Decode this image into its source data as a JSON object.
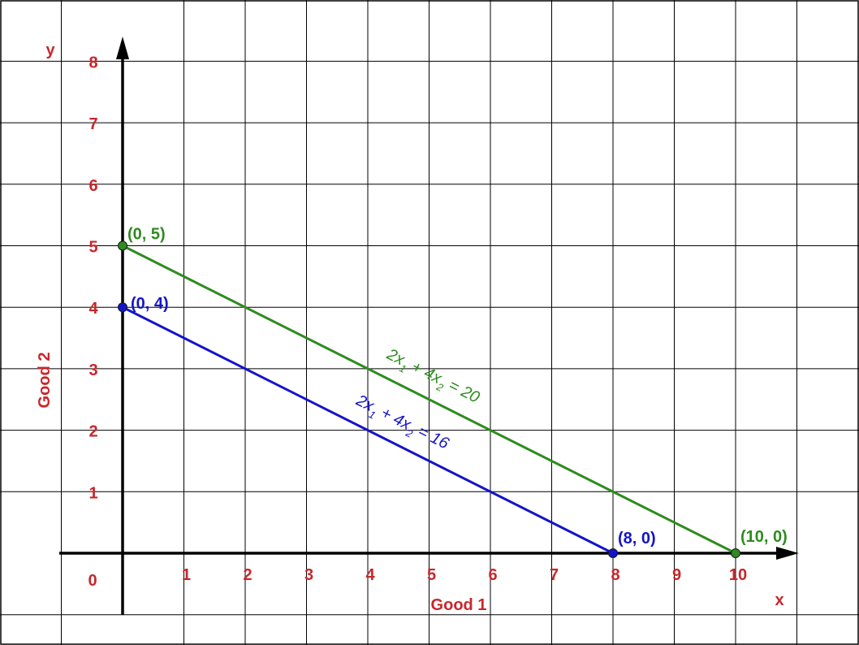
{
  "chart_data": {
    "type": "line",
    "xlabel": "Good 1",
    "ylabel": "Good 2",
    "x_axis_letter": "x",
    "y_axis_letter": "y",
    "origin_label": "0",
    "xlim": [
      -1,
      11.2
    ],
    "ylim": [
      -1.1,
      8.9
    ],
    "x_ticks": [
      1,
      2,
      3,
      4,
      5,
      6,
      7,
      8,
      9,
      10
    ],
    "y_ticks": [
      1,
      2,
      3,
      4,
      5,
      6,
      7,
      8
    ],
    "grid": true,
    "series": [
      {
        "equation": "2x1 + 4x2 = 20",
        "eq_parts": [
          "2x",
          "1",
          " + 4x",
          "2",
          " = 20"
        ],
        "color": "#2e8b1f",
        "x": [
          0,
          10
        ],
        "y": [
          5,
          0
        ],
        "point_labels": [
          "(0, 5)",
          "(10, 0)"
        ]
      },
      {
        "equation": "2x1 + 4x2 = 16",
        "eq_parts": [
          "2x",
          "1",
          " + 4x",
          "2",
          " = 16"
        ],
        "color": "#1414c8",
        "x": [
          0,
          8
        ],
        "y": [
          4,
          0
        ],
        "point_labels": [
          "(0, 4)",
          "(8, 0)"
        ]
      }
    ]
  },
  "colors": {
    "tick_text": "#c8272b",
    "grid": "#000000",
    "axis": "#000000"
  }
}
